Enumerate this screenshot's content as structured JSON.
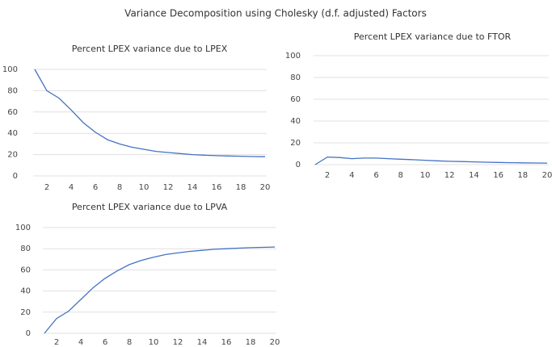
{
  "title": "Variance Decomposition using Cholesky (d.f. adjusted) Factors",
  "chart_data": [
    {
      "type": "line",
      "title": "Percent LPEX variance due to LPEX",
      "x": [
        1,
        2,
        3,
        4,
        5,
        6,
        7,
        8,
        9,
        10,
        11,
        12,
        13,
        14,
        15,
        16,
        17,
        18,
        19,
        20
      ],
      "series": [
        {
          "color": "#4472c4",
          "values": [
            100,
            80,
            73,
            62,
            50,
            41,
            34,
            30,
            27,
            25,
            23,
            22,
            21,
            20,
            19.5,
            19,
            18.7,
            18.5,
            18.2,
            18
          ]
        }
      ],
      "xlim": [
        1,
        20
      ],
      "xticks": [
        2,
        4,
        6,
        8,
        10,
        12,
        14,
        16,
        18,
        20
      ],
      "ylim": [
        0,
        100
      ],
      "yticks": [
        0,
        20,
        40,
        60,
        80,
        100
      ],
      "grid": true
    },
    {
      "type": "line",
      "title": "Percent LPEX variance due to FTOR",
      "x": [
        1,
        2,
        3,
        4,
        5,
        6,
        7,
        8,
        9,
        10,
        11,
        12,
        13,
        14,
        15,
        16,
        17,
        18,
        19,
        20
      ],
      "series": [
        {
          "color": "#4472c4",
          "values": [
            0,
            7,
            6.5,
            5.5,
            6,
            6,
            5.5,
            5,
            4.5,
            4,
            3.5,
            3,
            2.8,
            2.5,
            2.2,
            2,
            1.8,
            1.6,
            1.5,
            1.4
          ]
        }
      ],
      "xlim": [
        1,
        20
      ],
      "xticks": [
        2,
        4,
        6,
        8,
        10,
        12,
        14,
        16,
        18,
        20
      ],
      "ylim": [
        0,
        100
      ],
      "yticks": [
        0,
        20,
        40,
        60,
        80,
        100
      ],
      "grid": true
    },
    {
      "type": "line",
      "title": "Percent LPEX variance due to LPVA",
      "x": [
        1,
        2,
        3,
        4,
        5,
        6,
        7,
        8,
        9,
        10,
        11,
        12,
        13,
        14,
        15,
        16,
        17,
        18,
        19,
        20
      ],
      "series": [
        {
          "color": "#4472c4",
          "values": [
            0,
            14,
            21,
            32,
            43,
            52,
            59,
            65,
            69,
            72,
            74.5,
            76,
            77.5,
            78.5,
            79.5,
            80,
            80.5,
            81,
            81.3,
            81.6
          ]
        }
      ],
      "xlim": [
        1,
        20
      ],
      "xticks": [
        2,
        4,
        6,
        8,
        10,
        12,
        14,
        16,
        18,
        20
      ],
      "ylim": [
        0,
        100
      ],
      "yticks": [
        0,
        20,
        40,
        60,
        80,
        100
      ],
      "grid": true
    }
  ]
}
